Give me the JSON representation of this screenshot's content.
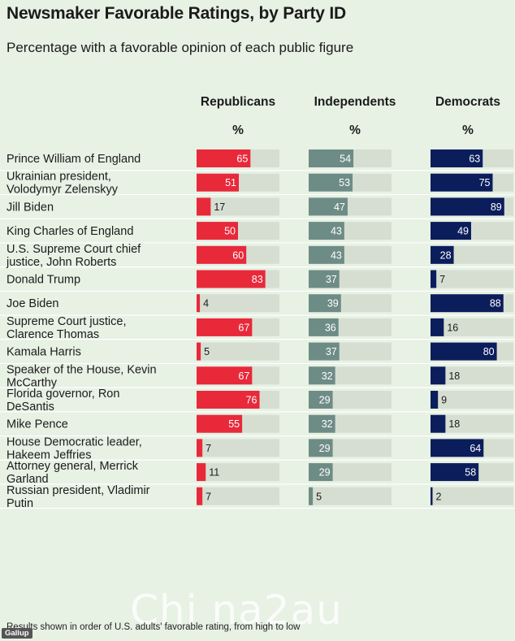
{
  "title": "Newsmaker Favorable Ratings, by Party ID",
  "subtitle": "Percentage with a favorable opinion of each public figure",
  "columns": [
    {
      "name": "Republicans",
      "unit": "%",
      "color": "#e8293a"
    },
    {
      "name": "Independents",
      "unit": "%",
      "color": "#6e8c86"
    },
    {
      "name": "Democrats",
      "unit": "%",
      "color": "#0c1d5c"
    }
  ],
  "track_color": "#d6ded2",
  "footnote": "Results shown in order of U.S. adults' favorable rating, from high to low",
  "logo": "Gallup",
  "watermark": "Chi na2au",
  "chart_data": {
    "type": "bar",
    "orientation": "horizontal",
    "title": "Newsmaker Favorable Ratings, by Party ID",
    "subtitle": "Percentage with a favorable opinion of each public figure",
    "categories": [
      [
        "Prince William of England"
      ],
      [
        "Ukrainian president,",
        "Volodymyr Zelenskyy"
      ],
      [
        "Jill Biden"
      ],
      [
        "King Charles of England"
      ],
      [
        "U.S. Supreme Court chief",
        "justice, John Roberts"
      ],
      [
        "Donald Trump"
      ],
      [
        "Joe Biden"
      ],
      [
        "Supreme Court justice,",
        "Clarence Thomas"
      ],
      [
        "Kamala Harris"
      ],
      [
        "Speaker of the House, Kevin",
        "McCarthy"
      ],
      [
        "Florida governor, Ron",
        "DeSantis"
      ],
      [
        "Mike Pence"
      ],
      [
        "House Democratic leader,",
        "Hakeem Jeffries"
      ],
      [
        "Attorney general, Merrick",
        "Garland"
      ],
      [
        "Russian president, Vladimir",
        "Putin"
      ]
    ],
    "series": [
      {
        "name": "Republicans",
        "values": [
          65,
          51,
          17,
          50,
          60,
          83,
          4,
          67,
          5,
          67,
          76,
          55,
          7,
          11,
          7
        ]
      },
      {
        "name": "Independents",
        "values": [
          54,
          53,
          47,
          43,
          43,
          37,
          39,
          36,
          37,
          32,
          29,
          32,
          29,
          29,
          5
        ]
      },
      {
        "name": "Democrats",
        "values": [
          63,
          75,
          89,
          49,
          28,
          7,
          88,
          16,
          80,
          18,
          9,
          18,
          64,
          58,
          2
        ]
      }
    ],
    "xlim": [
      0,
      100
    ],
    "grid": false,
    "legend": "column headers at top"
  }
}
